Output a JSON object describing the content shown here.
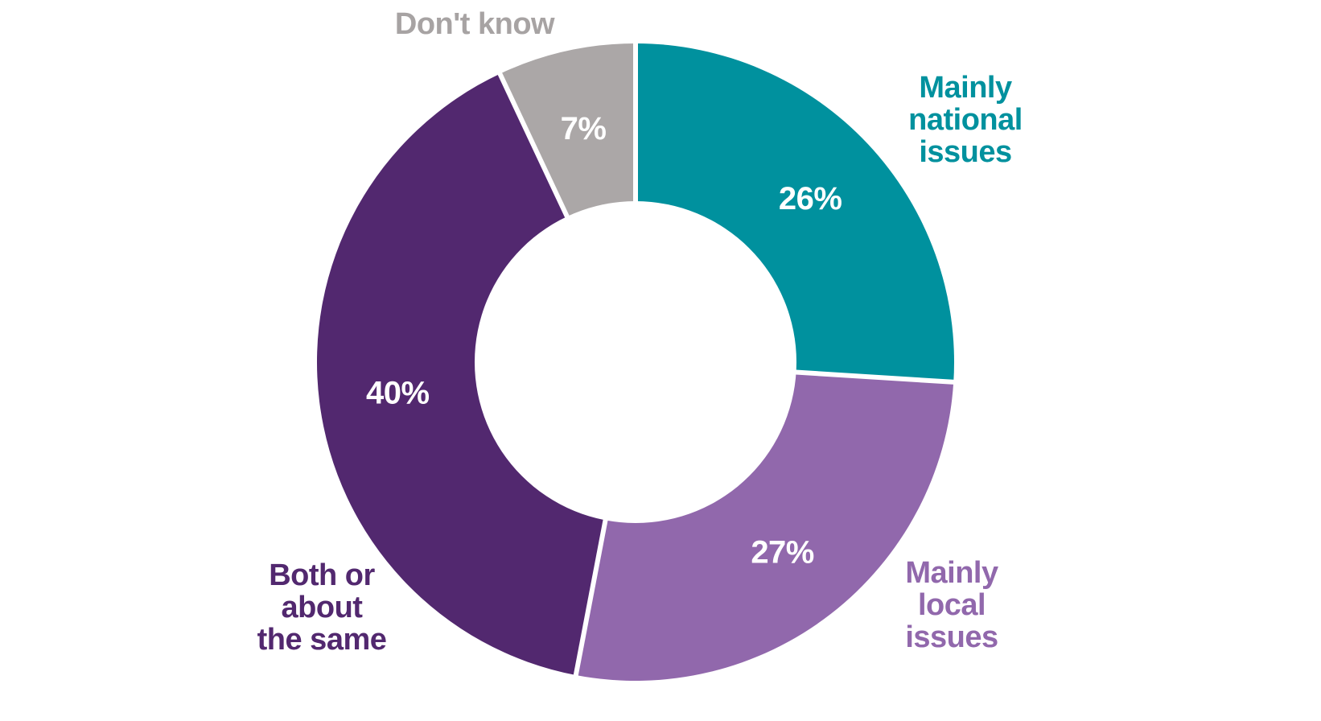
{
  "chart_data": {
    "type": "pie",
    "subtype": "donut",
    "title": "",
    "units": "%",
    "categories": [
      "Mainly national issues",
      "Mainly local issues",
      "Both or about the same",
      "Don't know"
    ],
    "values": [
      26,
      27,
      40,
      7
    ],
    "series": [
      {
        "name": "Mainly national issues",
        "value": 26,
        "value_label": "26%",
        "color": "#00919E"
      },
      {
        "name": "Mainly local issues",
        "value": 27,
        "value_label": "27%",
        "color": "#9168AC"
      },
      {
        "name": "Both or about the same",
        "value": 40,
        "value_label": "40%",
        "color": "#52286F"
      },
      {
        "name": "Don't know",
        "value": 7,
        "value_label": "7%",
        "color": "#ABA7A7"
      }
    ],
    "start_angle_deg_from_top": 0,
    "direction": "clockwise",
    "inner_radius_ratio": 0.505,
    "divider_color": "#FFFFFF",
    "value_label_color": "#FFFFFF",
    "label_position": "outside",
    "legend": "none"
  },
  "labels": {
    "national": {
      "text": "Mainly\nnational\nissues",
      "color": "#00919E"
    },
    "local": {
      "text": "Mainly\nlocal\nissues",
      "color": "#9168AC"
    },
    "both": {
      "text": "Both or\nabout\nthe same",
      "color": "#52286F"
    },
    "dont_know": {
      "text": "Don't know",
      "color": "#A7A3A3"
    }
  }
}
